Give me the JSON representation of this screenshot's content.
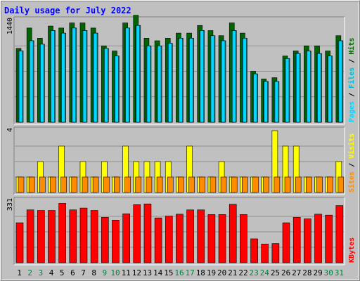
{
  "title": "Daily usage for July 2022",
  "colors": {
    "background": "#c0c0c0",
    "title": "#0000ff",
    "hits": "#006400",
    "files": "#00bcd4",
    "pages": "#00d8ff",
    "visits": "#ffff00",
    "sites": "#ff8c00",
    "kbytes": "#ff0000",
    "weekday_label": "#000000",
    "weekend_label": "#008040"
  },
  "chart_data": {
    "type": "bar",
    "title": "Daily usage for July 2022",
    "categories": [
      "1",
      "2",
      "3",
      "4",
      "5",
      "6",
      "7",
      "8",
      "9",
      "10",
      "11",
      "12",
      "13",
      "14",
      "15",
      "16",
      "17",
      "18",
      "19",
      "20",
      "21",
      "22",
      "23",
      "24",
      "25",
      "26",
      "27",
      "28",
      "29",
      "30",
      "31"
    ],
    "weekend_days": [
      "2",
      "3",
      "9",
      "10",
      "16",
      "17",
      "23",
      "24",
      "30",
      "31"
    ],
    "panels": [
      {
        "id": "usage",
        "axis_label_parts": [
          "Pages",
          "Files",
          "Hits"
        ],
        "ymax": 1440,
        "ymax_label": "1440",
        "series": [
          {
            "name": "Hits",
            "values": [
              1044,
              1332,
              1188,
              1360,
              1332,
              1404,
              1404,
              1332,
              1080,
              1008,
              1404,
              1512,
              1188,
              1152,
              1188,
              1260,
              1260,
              1368,
              1296,
              1224,
              1404,
              1260,
              720,
              612,
              630,
              936,
              1008,
              1080,
              1080,
              1008,
              1224
            ]
          },
          {
            "name": "Files",
            "values": [
              1008,
              1152,
              1104,
              1296,
              1260,
              1332,
              1296,
              1260,
              1044,
              936,
              1332,
              1368,
              1080,
              1080,
              1116,
              1188,
              1188,
              1296,
              1224,
              1152,
              1296,
              1188,
              684,
              576,
              576,
              900,
              972,
              1008,
              972,
              936,
              1152
            ]
          },
          {
            "name": "Pages",
            "values": [
              1008,
              1152,
              1104,
              1296,
              1260,
              1332,
              1296,
              1260,
              1044,
              936,
              1332,
              1368,
              1080,
              1080,
              1116,
              1188,
              1188,
              1296,
              1224,
              1152,
              1296,
              1188,
              684,
              576,
              576,
              900,
              972,
              1008,
              972,
              936,
              1152
            ]
          }
        ]
      },
      {
        "id": "visits",
        "axis_label_parts": [
          "Sites",
          "Visits"
        ],
        "ymax": 4,
        "ymax_label": "4",
        "series": [
          {
            "name": "Visits",
            "values": [
              1,
              1,
              2,
              1,
              3,
              1,
              2,
              1,
              2,
              1,
              3,
              2,
              2,
              2,
              2,
              1,
              3,
              1,
              1,
              2,
              1,
              1,
              1,
              1,
              4,
              3,
              3,
              1,
              1,
              1,
              2
            ]
          },
          {
            "name": "Sites",
            "values": [
              1,
              1,
              1,
              1,
              1,
              1,
              1,
              1,
              1,
              1,
              1,
              1,
              1,
              1,
              1,
              1,
              1,
              1,
              1,
              1,
              1,
              1,
              1,
              1,
              1,
              1,
              1,
              1,
              1,
              1,
              1
            ]
          }
        ]
      },
      {
        "id": "kbytes",
        "axis_label_parts": [
          "KBytes"
        ],
        "ymax": 331,
        "ymax_label": "331",
        "series": [
          {
            "name": "KBytes",
            "values": [
              214,
              283,
              280,
              280,
              318,
              283,
              293,
              280,
              243,
              228,
              262,
              311,
              315,
              240,
              250,
              260,
              283,
              283,
              258,
              258,
              313,
              258,
              128,
              100,
              103,
              214,
              243,
              235,
              260,
              255,
              306
            ]
          }
        ]
      }
    ]
  }
}
